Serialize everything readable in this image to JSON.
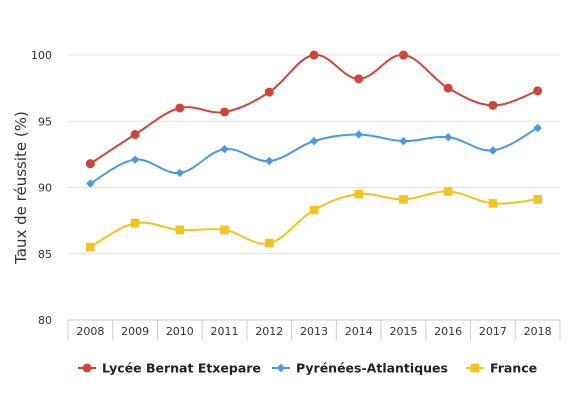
{
  "chart_data": {
    "type": "line",
    "title": "",
    "xlabel": "",
    "ylabel": "Taux de réussite (%)",
    "categories": [
      "2008",
      "2009",
      "2010",
      "2011",
      "2012",
      "2013",
      "2014",
      "2015",
      "2016",
      "2017",
      "2018"
    ],
    "ylim": [
      80,
      100
    ],
    "yticks": [
      80,
      85,
      90,
      95,
      100
    ],
    "grid": {
      "horizontal": true,
      "vertical": false
    },
    "legend_position": "bottom",
    "series": [
      {
        "name": "Lycée Bernat Etxepare",
        "color": "#d0453a",
        "marker": "circle",
        "values": [
          91.8,
          94.0,
          96.0,
          95.7,
          97.2,
          100.0,
          98.2,
          100.0,
          97.5,
          96.2,
          97.3
        ]
      },
      {
        "name": "Pyrénées-Atlantiques",
        "color": "#4a9ae3",
        "marker": "diamond",
        "values": [
          90.3,
          92.1,
          91.1,
          92.9,
          92.0,
          93.5,
          94.0,
          93.5,
          93.8,
          92.8,
          94.5
        ]
      },
      {
        "name": "France",
        "color": "#f4c31c",
        "marker": "square",
        "values": [
          85.5,
          87.3,
          86.8,
          86.8,
          85.8,
          88.3,
          89.5,
          89.1,
          89.7,
          88.8,
          89.1
        ]
      }
    ]
  }
}
